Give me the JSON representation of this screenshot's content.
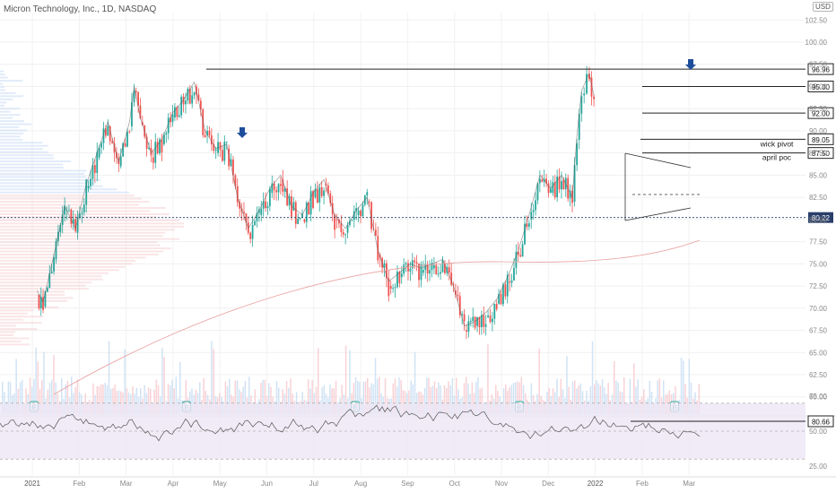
{
  "header": {
    "symbol_title": "Micron Technology, Inc., 1D, NASDAQ",
    "currency": "USD"
  },
  "chart_data": {
    "type": "candlestick",
    "symbol": "Micron Technology, Inc.",
    "interval": "1D",
    "exchange": "NASDAQ",
    "ylim": [
      62.5,
      102.5
    ],
    "y_ticks": [
      60.0,
      62.5,
      65.0,
      67.5,
      70.0,
      72.5,
      75.0,
      77.5,
      80.0,
      82.5,
      85.0,
      87.5,
      90.0,
      92.5,
      95.0,
      97.5,
      100.0,
      102.5
    ],
    "x_ticks": [
      "2021",
      "Feb",
      "Mar",
      "Apr",
      "May",
      "Jun",
      "Jul",
      "Aug",
      "Sep",
      "Oct",
      "Nov",
      "Dec",
      "2022",
      "Feb",
      "Mar"
    ],
    "approx_close_path": [
      {
        "date": "2021-01-04",
        "close": 71.5
      },
      {
        "date": "2021-01-08",
        "close": 70.2
      },
      {
        "date": "2021-01-15",
        "close": 75.5
      },
      {
        "date": "2021-01-22",
        "close": 81.0
      },
      {
        "date": "2021-01-29",
        "close": 78.5
      },
      {
        "date": "2021-02-05",
        "close": 83.5
      },
      {
        "date": "2021-02-12",
        "close": 87.0
      },
      {
        "date": "2021-02-19",
        "close": 90.5
      },
      {
        "date": "2021-02-26",
        "close": 86.0
      },
      {
        "date": "2021-03-05",
        "close": 90.5
      },
      {
        "date": "2021-03-08",
        "close": 94.5
      },
      {
        "date": "2021-03-12",
        "close": 91.0
      },
      {
        "date": "2021-03-19",
        "close": 87.0
      },
      {
        "date": "2021-03-26",
        "close": 88.5
      },
      {
        "date": "2021-04-02",
        "close": 91.5
      },
      {
        "date": "2021-04-09",
        "close": 93.0
      },
      {
        "date": "2021-04-16",
        "close": 95.0
      },
      {
        "date": "2021-04-23",
        "close": 89.5
      },
      {
        "date": "2021-04-30",
        "close": 87.5
      },
      {
        "date": "2021-05-07",
        "close": 88.0
      },
      {
        "date": "2021-05-14",
        "close": 82.0
      },
      {
        "date": "2021-05-21",
        "close": 78.5
      },
      {
        "date": "2021-05-28",
        "close": 80.5
      },
      {
        "date": "2021-06-04",
        "close": 83.0
      },
      {
        "date": "2021-06-11",
        "close": 84.5
      },
      {
        "date": "2021-06-18",
        "close": 81.0
      },
      {
        "date": "2021-06-25",
        "close": 80.0
      },
      {
        "date": "2021-07-02",
        "close": 82.5
      },
      {
        "date": "2021-07-09",
        "close": 84.0
      },
      {
        "date": "2021-07-16",
        "close": 80.0
      },
      {
        "date": "2021-07-23",
        "close": 78.5
      },
      {
        "date": "2021-07-30",
        "close": 80.5
      },
      {
        "date": "2021-08-06",
        "close": 82.0
      },
      {
        "date": "2021-08-13",
        "close": 76.0
      },
      {
        "date": "2021-08-20",
        "close": 72.5
      },
      {
        "date": "2021-08-27",
        "close": 73.5
      },
      {
        "date": "2021-09-03",
        "close": 74.5
      },
      {
        "date": "2021-09-10",
        "close": 74.0
      },
      {
        "date": "2021-09-17",
        "close": 74.5
      },
      {
        "date": "2021-09-24",
        "close": 75.0
      },
      {
        "date": "2021-10-01",
        "close": 72.0
      },
      {
        "date": "2021-10-08",
        "close": 67.5
      },
      {
        "date": "2021-10-15",
        "close": 68.0
      },
      {
        "date": "2021-10-22",
        "close": 69.0
      },
      {
        "date": "2021-10-29",
        "close": 70.5
      },
      {
        "date": "2021-11-05",
        "close": 73.0
      },
      {
        "date": "2021-11-12",
        "close": 76.0
      },
      {
        "date": "2021-11-19",
        "close": 80.0
      },
      {
        "date": "2021-11-26",
        "close": 84.5
      },
      {
        "date": "2021-12-03",
        "close": 83.0
      },
      {
        "date": "2021-12-10",
        "close": 84.5
      },
      {
        "date": "2021-12-17",
        "close": 82.0
      },
      {
        "date": "2021-12-20",
        "close": 89.0
      },
      {
        "date": "2021-12-23",
        "close": 94.0
      },
      {
        "date": "2021-12-28",
        "close": 96.0
      },
      {
        "date": "2021-12-31",
        "close": 93.5
      }
    ],
    "horizontal_levels": [
      {
        "price": 96.96,
        "label": "96.96"
      },
      {
        "price": 95.0,
        "label": "95.00"
      },
      {
        "price": 92.0,
        "label": "92.00"
      },
      {
        "price": 89.05,
        "label": "89.05",
        "note": "wick pivot"
      },
      {
        "price": 87.5,
        "label": "87.50",
        "note": "april poc"
      },
      {
        "price": 80.22,
        "label": "80.22",
        "current": true
      }
    ],
    "earnings_markers": [
      "E",
      "E",
      "E",
      "E",
      "E"
    ],
    "rsi": {
      "ylim": [
        25,
        75
      ],
      "y_ticks": [
        25.0,
        50.0,
        75.0
      ],
      "level_label": "80.66"
    },
    "colors": {
      "up": "#26a69a",
      "down": "#ef5350",
      "ma_line": "#e8a0a0",
      "price_badge": "#2a3f6a",
      "arrow": "#1e4d9c"
    }
  }
}
